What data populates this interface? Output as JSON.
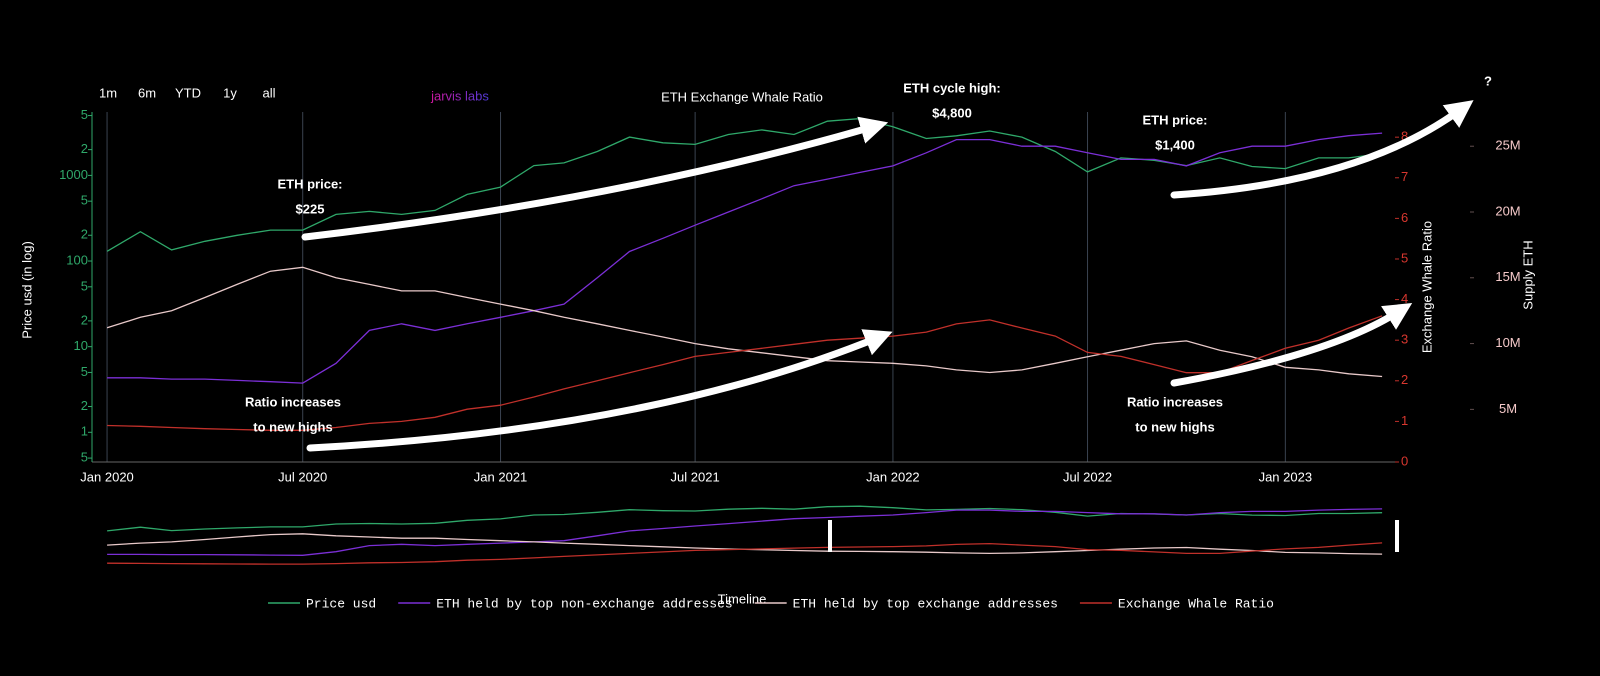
{
  "ui": {
    "range_buttons": [
      "1m",
      "6m",
      "YTD",
      "1y",
      "all"
    ],
    "logo": "jarvis labs"
  },
  "chart_data": {
    "type": "line",
    "title": "ETH Exchange Whale Ratio",
    "ylabel": "Price usd (in log)",
    "y2label": "Exchange Whale Ratio",
    "y3label": "Supply ETH",
    "navigator_label": "Timeline",
    "log_y": true,
    "grid": true,
    "x": [
      "2020-01",
      "2020-02",
      "2020-03",
      "2020-04",
      "2020-05",
      "2020-06",
      "2020-07",
      "2020-08",
      "2020-09",
      "2020-10",
      "2020-11",
      "2020-12",
      "2021-01",
      "2021-02",
      "2021-03",
      "2021-04",
      "2021-05",
      "2021-06",
      "2021-07",
      "2021-08",
      "2021-09",
      "2021-10",
      "2021-11",
      "2021-12",
      "2022-01",
      "2022-02",
      "2022-03",
      "2022-04",
      "2022-05",
      "2022-06",
      "2022-07",
      "2022-08",
      "2022-09",
      "2022-10",
      "2022-11",
      "2022-12",
      "2023-01",
      "2023-02",
      "2023-03",
      "2023-04"
    ],
    "xlim": [
      "2019-12-18",
      "2023-04-13"
    ],
    "xticks": [
      {
        "value": "2020-01-01",
        "label": "Jan 2020"
      },
      {
        "value": "2020-07-01",
        "label": "Jul 2020"
      },
      {
        "value": "2021-01-01",
        "label": "Jan 2021"
      },
      {
        "value": "2021-07-01",
        "label": "Jul 2021"
      },
      {
        "value": "2022-01-01",
        "label": "Jan 2022"
      },
      {
        "value": "2022-07-01",
        "label": "Jul 2022"
      },
      {
        "value": "2023-01-01",
        "label": "Jan 2023"
      }
    ],
    "ylim": [
      0.45,
      5500
    ],
    "yticks": [
      {
        "value": 5000,
        "label": "5"
      },
      {
        "value": 2000,
        "label": "2"
      },
      1000,
      {
        "value": 500,
        "label": "5"
      },
      {
        "value": 200,
        "label": "2"
      },
      100,
      {
        "value": 50,
        "label": "5"
      },
      {
        "value": 20,
        "label": "2"
      },
      10,
      {
        "value": 5,
        "label": "5"
      },
      {
        "value": 2,
        "label": "2"
      },
      1,
      {
        "value": 0.5,
        "label": "5"
      }
    ],
    "y2lim": [
      0,
      8.62
    ],
    "y2ticks": [
      0,
      1,
      2,
      3,
      4,
      5,
      6,
      7,
      8
    ],
    "y3lim": [
      1000000,
      27600000
    ],
    "y3ticks": [
      {
        "value": 5000000,
        "label": "5M"
      },
      {
        "value": 10000000,
        "label": "10M"
      },
      {
        "value": 15000000,
        "label": "15M"
      },
      {
        "value": 20000000,
        "label": "20M"
      },
      {
        "value": 25000000,
        "label": "25M"
      }
    ],
    "series": [
      {
        "name": "Price usd",
        "color": "#2fa86a",
        "axis": "y",
        "values": [
          130,
          220,
          135,
          170,
          200,
          230,
          230,
          350,
          380,
          350,
          390,
          600,
          730,
          1300,
          1400,
          1900,
          2800,
          2400,
          2300,
          3000,
          3400,
          3000,
          4300,
          4600,
          3700,
          2700,
          2900,
          3300,
          2800,
          1900,
          1100,
          1600,
          1500,
          1300,
          1600,
          1270,
          1200,
          1600,
          1600,
          1800
        ]
      },
      {
        "name": "ETH held by top non-exchange addresses",
        "color": "#7b2fd6",
        "axis": "y3",
        "values": [
          7400000,
          7400000,
          7300000,
          7300000,
          7200000,
          7100000,
          7000000,
          8500000,
          11000000,
          11500000,
          11000000,
          11500000,
          12000000,
          12500000,
          13000000,
          15000000,
          17000000,
          18000000,
          19000000,
          20000000,
          21000000,
          22000000,
          22500000,
          23000000,
          23500000,
          24500000,
          25500000,
          25500000,
          25000000,
          25000000,
          24500000,
          24000000,
          24000000,
          23500000,
          24500000,
          25000000,
          25000000,
          25500000,
          25800000,
          26000000
        ]
      },
      {
        "name": "ETH held by top exchange addresses",
        "color": "#e8c9c9",
        "axis": "y3",
        "values": [
          11200000,
          12000000,
          12500000,
          13500000,
          14500000,
          15500000,
          15800000,
          15000000,
          14500000,
          14000000,
          14000000,
          13500000,
          13000000,
          12500000,
          12000000,
          11500000,
          11000000,
          10500000,
          10000000,
          9600000,
          9300000,
          9000000,
          8700000,
          8600000,
          8500000,
          8300000,
          8000000,
          7800000,
          8000000,
          8500000,
          9000000,
          9500000,
          10000000,
          10200000,
          9500000,
          9000000,
          8200000,
          8000000,
          7700000,
          7500000
        ]
      },
      {
        "name": "Exchange Whale Ratio",
        "color": "#c0302a",
        "axis": "y2",
        "values": [
          0.9,
          0.88,
          0.85,
          0.82,
          0.8,
          0.78,
          0.78,
          0.85,
          0.95,
          1.0,
          1.1,
          1.3,
          1.4,
          1.6,
          1.8,
          2.0,
          2.2,
          2.4,
          2.6,
          2.7,
          2.8,
          2.9,
          3.0,
          3.05,
          3.1,
          3.2,
          3.4,
          3.5,
          3.3,
          3.1,
          2.7,
          2.6,
          2.4,
          2.2,
          2.2,
          2.5,
          2.8,
          3.0,
          3.3,
          3.6
        ]
      }
    ],
    "annotations": [
      {
        "lines": [
          "ETH price:",
          "$225"
        ]
      },
      {
        "lines": [
          "ETH cycle high:",
          "$4,800"
        ]
      },
      {
        "lines": [
          "ETH price:",
          "$1,400"
        ]
      },
      {
        "lines": [
          "?"
        ]
      },
      {
        "lines": [
          "Ratio increases",
          "to new highs"
        ]
      },
      {
        "lines": [
          "Ratio increases",
          "to new highs"
        ]
      }
    ]
  }
}
